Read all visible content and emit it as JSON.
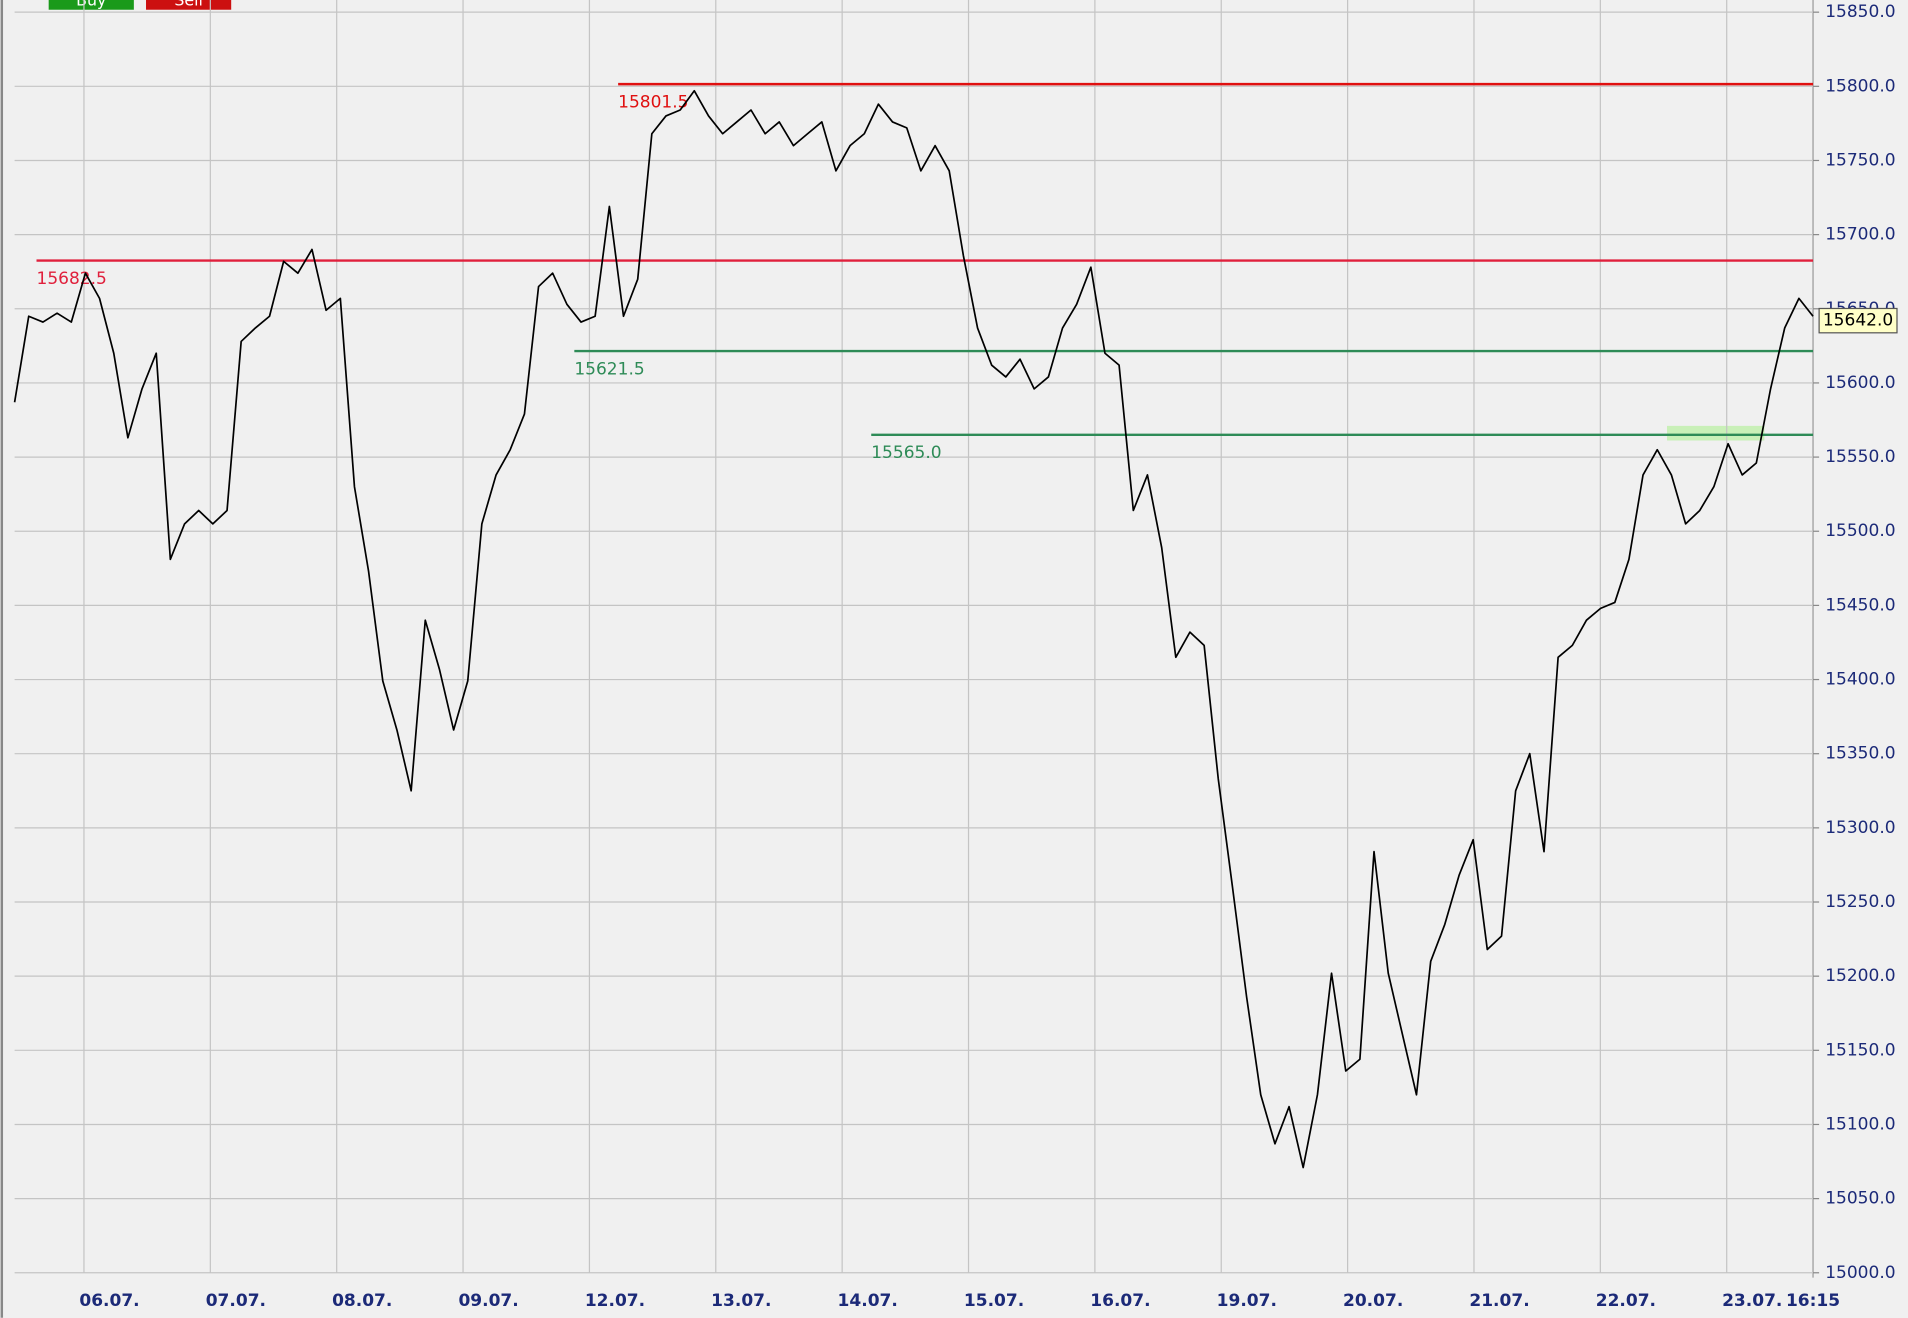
{
  "chart_data": {
    "type": "line",
    "buttons": [
      "Buy",
      "Sell"
    ],
    "x_labels": [
      "06.07.",
      "07.07.",
      "08.07.",
      "09.07.",
      "12.07.",
      "13.07.",
      "14.07.",
      "15.07.",
      "16.07.",
      "19.07.",
      "20.07.",
      "21.07.",
      "22.07.",
      "23.07.",
      "16:15"
    ],
    "series": [
      {
        "color": "#000000",
        "values": [
          15587,
          15645,
          15641,
          15647,
          15641,
          15674,
          15657,
          15620,
          15563,
          15596,
          15620,
          15481,
          15505,
          15514,
          15505,
          15514,
          15628,
          15637,
          15645,
          15682,
          15674,
          15690,
          15649,
          15657,
          15530,
          15473,
          15399,
          15366,
          15325,
          15440,
          15407,
          15366,
          15399,
          15505,
          15538,
          15555,
          15579,
          15665,
          15674,
          15653,
          15641,
          15645,
          15719,
          15645,
          15670,
          15768,
          15780,
          15784,
          15797,
          15780,
          15768,
          15776,
          15784,
          15768,
          15776,
          15760,
          15768,
          15776,
          15743,
          15760,
          15768,
          15788,
          15776,
          15772,
          15743,
          15760,
          15743,
          15686,
          15637,
          15612,
          15604,
          15616,
          15596,
          15604,
          15637,
          15653,
          15678,
          15620,
          15612,
          15514,
          15538,
          15489,
          15415,
          15432,
          15423,
          15333,
          15260,
          15186,
          15120,
          15087,
          15112,
          15071,
          15120,
          15202,
          15136,
          15144,
          15284,
          15202,
          15161,
          15120,
          15210,
          15235,
          15268,
          15292,
          15218,
          15227,
          15325,
          15350,
          15284,
          15415,
          15423,
          15440,
          15448,
          15452,
          15481,
          15538,
          15555,
          15538,
          15505,
          15514,
          15530,
          15559,
          15538,
          15546,
          15596,
          15637,
          15657,
          15645
        ]
      }
    ],
    "levels": [
      {
        "value": 15801.5,
        "label": "15801.5",
        "color": "#e01010"
      },
      {
        "value": 15682.5,
        "label": "15682.5",
        "color": "#e0203c"
      },
      {
        "value": 15621.5,
        "label": "15621.5",
        "color": "#2e8b57"
      },
      {
        "value": 15565.0,
        "label": "15565.0",
        "color": "#2e8b57"
      }
    ],
    "last_price": {
      "value": 15642.0,
      "label": "15642.0"
    },
    "ylim": [
      15000,
      15850
    ],
    "yticks": [
      {
        "value": 15000,
        "label": "15000.0"
      },
      {
        "value": 15050,
        "label": "15050.0"
      },
      {
        "value": 15100,
        "label": "15100.0"
      },
      {
        "value": 15150,
        "label": "15150.0"
      },
      {
        "value": 15200,
        "label": "15200.0"
      },
      {
        "value": 15250,
        "label": "15250.0"
      },
      {
        "value": 15300,
        "label": "15300.0"
      },
      {
        "value": 15350,
        "label": "15350.0"
      },
      {
        "value": 15400,
        "label": "15400.0"
      },
      {
        "value": 15450,
        "label": "15450.0"
      },
      {
        "value": 15500,
        "label": "15500.0"
      },
      {
        "value": 15550,
        "label": "15550.0"
      },
      {
        "value": 15600,
        "label": "15600.0"
      },
      {
        "value": 15650,
        "label": "15650.0"
      },
      {
        "value": 15700,
        "label": "15700.0"
      },
      {
        "value": 15750,
        "label": "15750.0"
      },
      {
        "value": 15800,
        "label": "15800.0"
      },
      {
        "value": 15850,
        "label": "15850.0"
      }
    ],
    "grid": true
  }
}
